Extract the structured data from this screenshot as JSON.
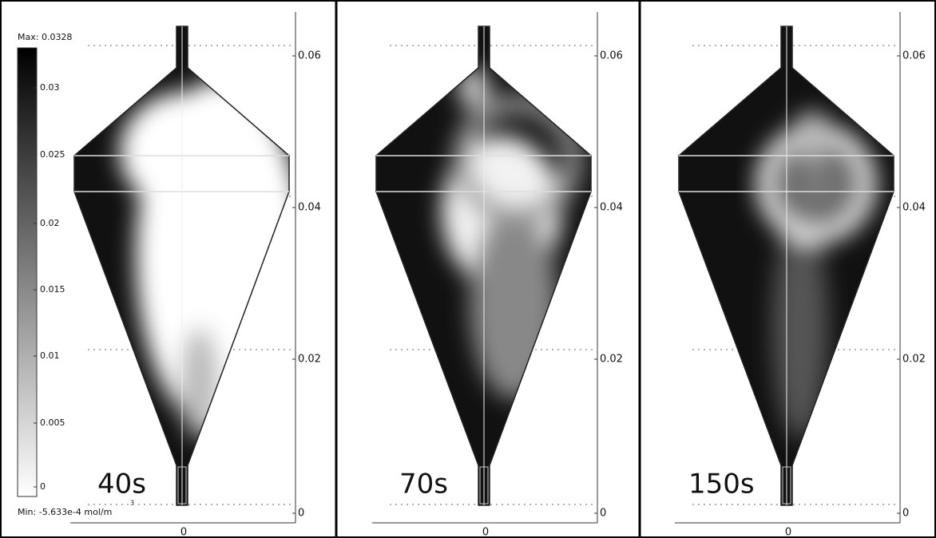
{
  "colorbar": {
    "max_label": "Max: 0.0328",
    "ticks": [
      "0.03",
      "0.025",
      "0.02",
      "0.015",
      "0.01",
      "0.005",
      "0"
    ],
    "min_label": "Min: -5.633e-4  mol/m",
    "unit_exponent": "3"
  },
  "panels": [
    {
      "label": "40s",
      "y_ticks": [
        "0.06",
        "0.04",
        "0.02",
        "0"
      ],
      "x_tick": "0"
    },
    {
      "label": "70s",
      "y_ticks": [
        "0.06",
        "0.04",
        "0.02",
        "0"
      ],
      "x_tick": "0"
    },
    {
      "label": "150s",
      "y_ticks": [
        "0.06",
        "0.04",
        "0.02",
        "0"
      ],
      "x_tick": "0"
    }
  ]
}
